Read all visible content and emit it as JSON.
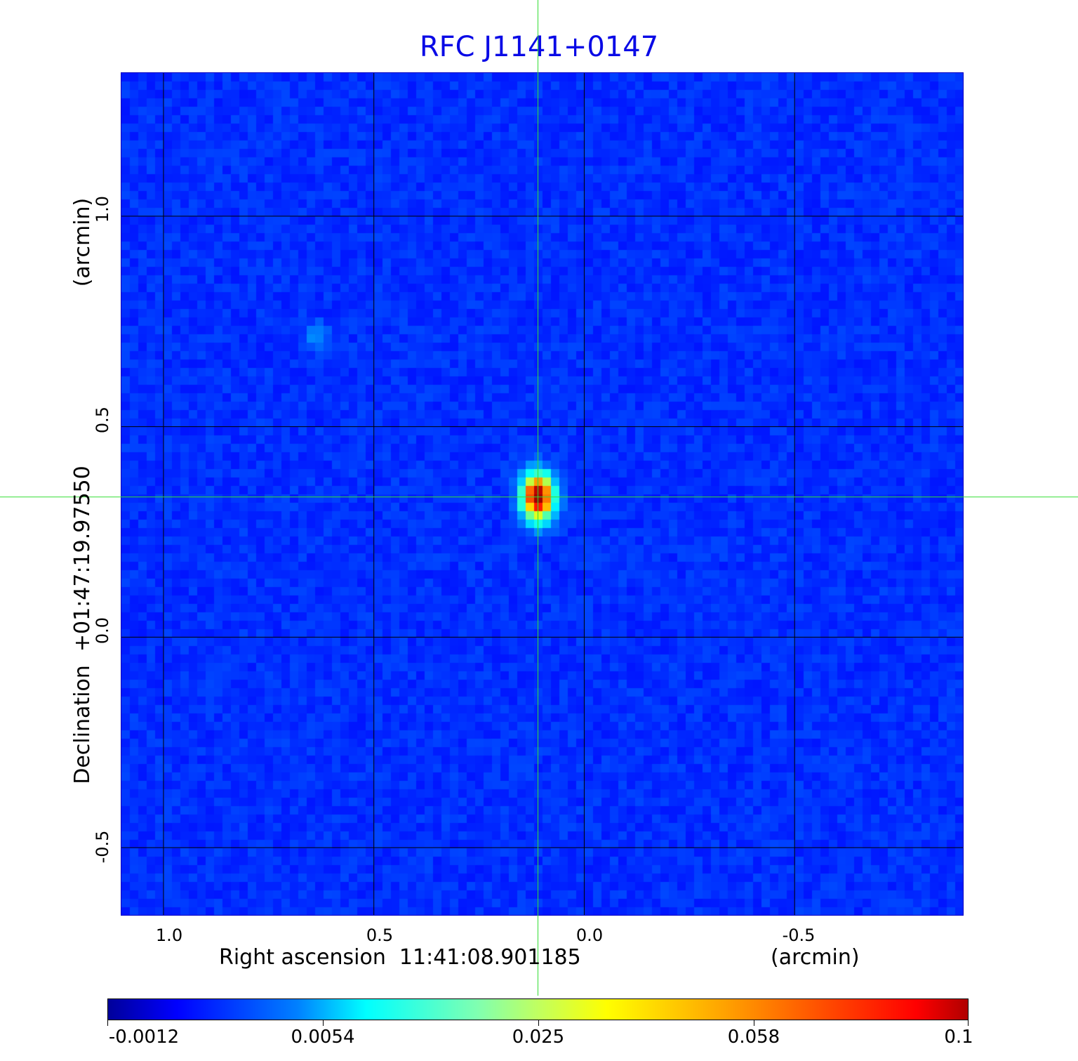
{
  "chart_data": {
    "type": "heatmap",
    "title": "RFC J1141+0147",
    "xlabel": "Right ascension  11:41:08.901185",
    "xunit": "(arcmin)",
    "ylabel": "Declination  +01:47:19.97550",
    "yunit": "(arcmin)",
    "xlim": [
      1.1,
      -0.9
    ],
    "ylim": [
      -0.66,
      1.34
    ],
    "xticks": [
      "1.0",
      "0.5",
      "0.0",
      "-0.5"
    ],
    "xtick_values": [
      1.0,
      0.5,
      0.0,
      -0.5
    ],
    "yticks": [
      "1.0",
      "0.5",
      "0.0",
      "-0.5"
    ],
    "ytick_values": [
      1.0,
      0.5,
      0.0,
      -0.5
    ],
    "grid": true,
    "colormap": "jet",
    "colorbar": {
      "position": "bottom",
      "ticks": [
        "-0.0012",
        "0.0054",
        "0.025",
        "0.058",
        "0.1"
      ],
      "min": -0.0012,
      "max": 0.1
    },
    "crosshair": {
      "x": 0.11,
      "y": 0.333,
      "color": "#33dd33"
    },
    "sources": [
      {
        "x": 0.11,
        "y": 0.333,
        "peak": 0.1
      },
      {
        "x": 0.64,
        "y": 0.715,
        "peak": 0.006
      }
    ],
    "background_level": 0.001
  },
  "colors": {
    "title": "#0a0ae6",
    "frame": "#0000c0",
    "grid": "#000000"
  }
}
